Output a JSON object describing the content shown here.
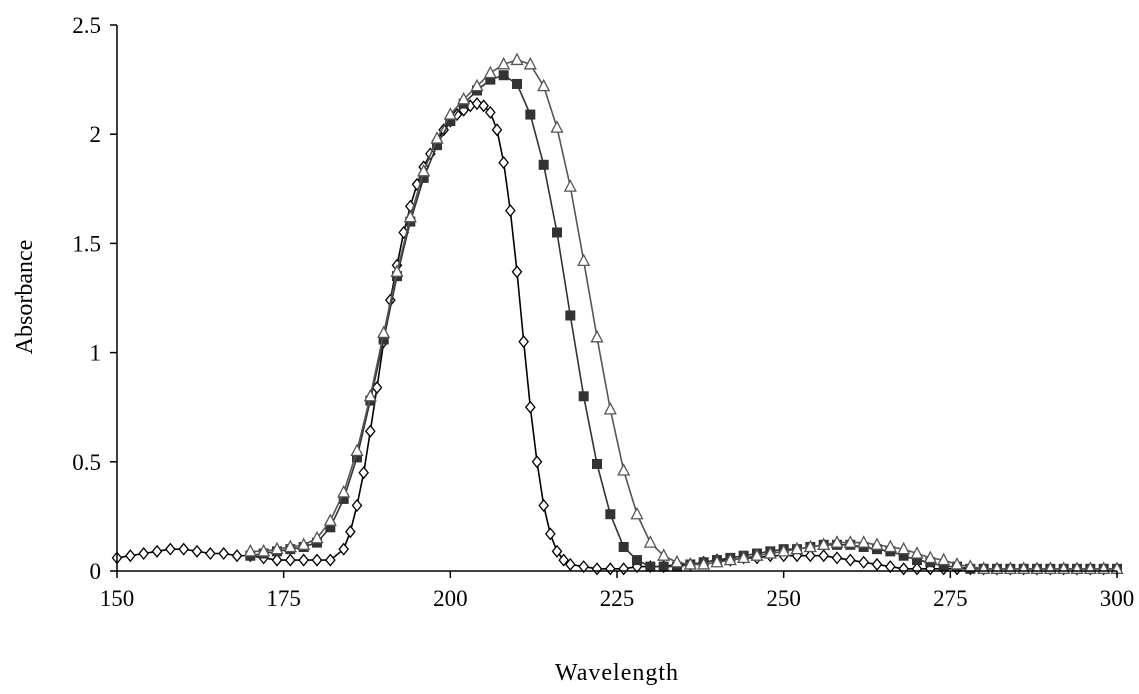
{
  "chart_data": {
    "type": "scatter",
    "title": "",
    "xlabel": "Wavelength",
    "ylabel": "Absorbance",
    "xlim": [
      150,
      300
    ],
    "ylim": [
      0,
      2.5
    ],
    "x_ticks": [
      150,
      175,
      200,
      225,
      250,
      275,
      300
    ],
    "y_ticks": [
      0,
      0.5,
      1,
      1.5,
      2,
      2.5
    ],
    "x_tick_labels": [
      "150",
      "175",
      "200",
      "225",
      "250",
      "275",
      "300"
    ],
    "y_tick_labels": [
      "0",
      "0.5",
      "1",
      "1.5",
      "2",
      "2.5"
    ],
    "grid": false,
    "legend": "none",
    "series": [
      {
        "marker": "open-diamond",
        "color": "#000000",
        "points": [
          [
            150,
            0.06
          ],
          [
            152,
            0.07
          ],
          [
            154,
            0.08
          ],
          [
            156,
            0.09
          ],
          [
            158,
            0.1
          ],
          [
            160,
            0.1
          ],
          [
            162,
            0.09
          ],
          [
            164,
            0.08
          ],
          [
            166,
            0.08
          ],
          [
            168,
            0.07
          ],
          [
            170,
            0.07
          ],
          [
            172,
            0.06
          ],
          [
            174,
            0.05
          ],
          [
            176,
            0.05
          ],
          [
            178,
            0.05
          ],
          [
            180,
            0.05
          ],
          [
            182,
            0.05
          ],
          [
            184,
            0.1
          ],
          [
            185,
            0.18
          ],
          [
            186,
            0.3
          ],
          [
            187,
            0.45
          ],
          [
            188,
            0.64
          ],
          [
            189,
            0.84
          ],
          [
            190,
            1.05
          ],
          [
            191,
            1.24
          ],
          [
            192,
            1.4
          ],
          [
            193,
            1.55
          ],
          [
            194,
            1.67
          ],
          [
            195,
            1.77
          ],
          [
            196,
            1.85
          ],
          [
            197,
            1.91
          ],
          [
            198,
            1.97
          ],
          [
            199,
            2.02
          ],
          [
            200,
            2.06
          ],
          [
            201,
            2.09
          ],
          [
            202,
            2.11
          ],
          [
            203,
            2.13
          ],
          [
            204,
            2.14
          ],
          [
            205,
            2.13
          ],
          [
            206,
            2.1
          ],
          [
            207,
            2.02
          ],
          [
            208,
            1.87
          ],
          [
            209,
            1.65
          ],
          [
            210,
            1.37
          ],
          [
            211,
            1.05
          ],
          [
            212,
            0.75
          ],
          [
            213,
            0.5
          ],
          [
            214,
            0.3
          ],
          [
            215,
            0.17
          ],
          [
            216,
            0.09
          ],
          [
            217,
            0.05
          ],
          [
            218,
            0.03
          ],
          [
            220,
            0.02
          ],
          [
            222,
            0.01
          ],
          [
            224,
            0.01
          ],
          [
            226,
            0.01
          ],
          [
            228,
            0.02
          ],
          [
            230,
            0.02
          ],
          [
            232,
            0.02
          ],
          [
            234,
            0.03
          ],
          [
            236,
            0.03
          ],
          [
            238,
            0.04
          ],
          [
            240,
            0.05
          ],
          [
            242,
            0.05
          ],
          [
            244,
            0.06
          ],
          [
            246,
            0.06
          ],
          [
            248,
            0.07
          ],
          [
            250,
            0.07
          ],
          [
            252,
            0.07
          ],
          [
            254,
            0.07
          ],
          [
            256,
            0.07
          ],
          [
            258,
            0.06
          ],
          [
            260,
            0.05
          ],
          [
            262,
            0.04
          ],
          [
            264,
            0.03
          ],
          [
            266,
            0.02
          ],
          [
            268,
            0.01
          ],
          [
            270,
            0.01
          ],
          [
            272,
            0.01
          ],
          [
            274,
            0.01
          ],
          [
            276,
            0.01
          ],
          [
            278,
            0.01
          ],
          [
            280,
            0.01
          ],
          [
            282,
            0.01
          ],
          [
            284,
            0.01
          ],
          [
            286,
            0.01
          ],
          [
            288,
            0.01
          ],
          [
            290,
            0.01
          ],
          [
            292,
            0.01
          ],
          [
            294,
            0.01
          ],
          [
            296,
            0.01
          ],
          [
            298,
            0.01
          ],
          [
            300,
            0.01
          ]
        ]
      },
      {
        "marker": "filled-square",
        "color": "#333333",
        "points": [
          [
            170,
            0.07
          ],
          [
            172,
            0.08
          ],
          [
            174,
            0.09
          ],
          [
            176,
            0.1
          ],
          [
            178,
            0.11
          ],
          [
            180,
            0.13
          ],
          [
            182,
            0.2
          ],
          [
            184,
            0.33
          ],
          [
            186,
            0.52
          ],
          [
            188,
            0.78
          ],
          [
            190,
            1.06
          ],
          [
            192,
            1.35
          ],
          [
            194,
            1.6
          ],
          [
            196,
            1.8
          ],
          [
            198,
            1.95
          ],
          [
            200,
            2.06
          ],
          [
            202,
            2.14
          ],
          [
            204,
            2.2
          ],
          [
            206,
            2.25
          ],
          [
            208,
            2.27
          ],
          [
            210,
            2.23
          ],
          [
            212,
            2.09
          ],
          [
            214,
            1.86
          ],
          [
            216,
            1.55
          ],
          [
            218,
            1.17
          ],
          [
            220,
            0.8
          ],
          [
            222,
            0.49
          ],
          [
            224,
            0.26
          ],
          [
            226,
            0.11
          ],
          [
            228,
            0.05
          ],
          [
            230,
            0.02
          ],
          [
            232,
            0.02
          ],
          [
            234,
            0.02
          ],
          [
            236,
            0.03
          ],
          [
            238,
            0.04
          ],
          [
            240,
            0.05
          ],
          [
            242,
            0.06
          ],
          [
            244,
            0.07
          ],
          [
            246,
            0.08
          ],
          [
            248,
            0.09
          ],
          [
            250,
            0.1
          ],
          [
            252,
            0.1
          ],
          [
            254,
            0.11
          ],
          [
            256,
            0.12
          ],
          [
            258,
            0.12
          ],
          [
            260,
            0.12
          ],
          [
            262,
            0.11
          ],
          [
            264,
            0.1
          ],
          [
            266,
            0.09
          ],
          [
            268,
            0.07
          ],
          [
            270,
            0.05
          ],
          [
            272,
            0.04
          ],
          [
            274,
            0.02
          ],
          [
            276,
            0.02
          ],
          [
            278,
            0.01
          ],
          [
            280,
            0.01
          ],
          [
            282,
            0.01
          ],
          [
            284,
            0.01
          ],
          [
            286,
            0.01
          ],
          [
            288,
            0.01
          ],
          [
            290,
            0.01
          ],
          [
            292,
            0.01
          ],
          [
            294,
            0.01
          ],
          [
            296,
            0.01
          ],
          [
            298,
            0.01
          ],
          [
            300,
            0.01
          ]
        ]
      },
      {
        "marker": "open-triangle",
        "color": "#555555",
        "points": [
          [
            170,
            0.09
          ],
          [
            172,
            0.09
          ],
          [
            174,
            0.1
          ],
          [
            176,
            0.11
          ],
          [
            178,
            0.12
          ],
          [
            180,
            0.15
          ],
          [
            182,
            0.23
          ],
          [
            184,
            0.36
          ],
          [
            186,
            0.55
          ],
          [
            188,
            0.8
          ],
          [
            190,
            1.09
          ],
          [
            192,
            1.37
          ],
          [
            194,
            1.62
          ],
          [
            196,
            1.83
          ],
          [
            198,
            1.98
          ],
          [
            200,
            2.09
          ],
          [
            202,
            2.16
          ],
          [
            204,
            2.22
          ],
          [
            206,
            2.28
          ],
          [
            208,
            2.32
          ],
          [
            210,
            2.34
          ],
          [
            212,
            2.32
          ],
          [
            214,
            2.22
          ],
          [
            216,
            2.03
          ],
          [
            218,
            1.76
          ],
          [
            220,
            1.42
          ],
          [
            222,
            1.07
          ],
          [
            224,
            0.74
          ],
          [
            226,
            0.46
          ],
          [
            228,
            0.26
          ],
          [
            230,
            0.13
          ],
          [
            232,
            0.07
          ],
          [
            234,
            0.04
          ],
          [
            236,
            0.03
          ],
          [
            238,
            0.03
          ],
          [
            240,
            0.04
          ],
          [
            242,
            0.05
          ],
          [
            244,
            0.06
          ],
          [
            246,
            0.07
          ],
          [
            248,
            0.08
          ],
          [
            250,
            0.09
          ],
          [
            252,
            0.1
          ],
          [
            254,
            0.11
          ],
          [
            256,
            0.12
          ],
          [
            258,
            0.13
          ],
          [
            260,
            0.13
          ],
          [
            262,
            0.13
          ],
          [
            264,
            0.12
          ],
          [
            266,
            0.11
          ],
          [
            268,
            0.1
          ],
          [
            270,
            0.08
          ],
          [
            272,
            0.06
          ],
          [
            274,
            0.05
          ],
          [
            276,
            0.03
          ],
          [
            278,
            0.02
          ],
          [
            280,
            0.01
          ],
          [
            282,
            0.01
          ],
          [
            284,
            0.01
          ],
          [
            286,
            0.01
          ],
          [
            288,
            0.01
          ],
          [
            290,
            0.01
          ],
          [
            292,
            0.01
          ],
          [
            294,
            0.01
          ],
          [
            296,
            0.01
          ],
          [
            298,
            0.01
          ],
          [
            300,
            0.01
          ]
        ]
      }
    ]
  }
}
